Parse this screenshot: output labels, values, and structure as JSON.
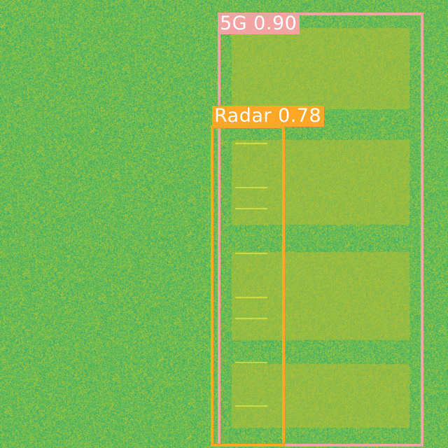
{
  "colors": {
    "noise_low": "#3fae6e",
    "noise_mid": "#6cbd4f",
    "noise_high": "#a8c43c",
    "signal_band": "#b3bf37",
    "signal_line": "#e8e84a"
  },
  "detections": [
    {
      "label": "5G",
      "score": "0.90",
      "text": "5G 0.90",
      "color": "#f4a3a3"
    },
    {
      "label": "Radar",
      "score": "0.78",
      "text": "Radar 0.78",
      "color": "#ffa726"
    }
  ]
}
